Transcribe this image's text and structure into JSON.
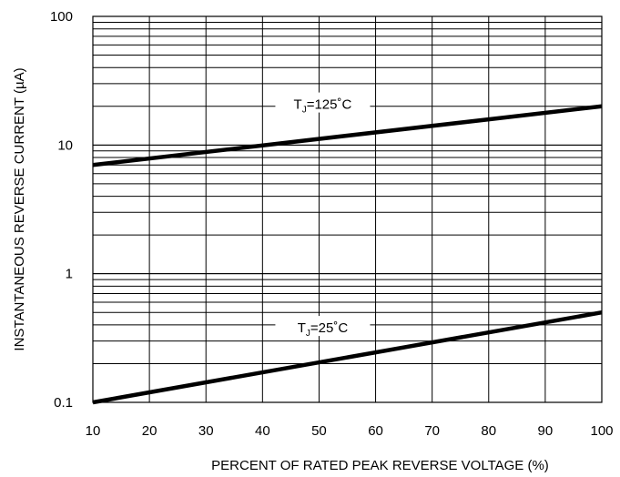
{
  "chart_data": {
    "type": "line",
    "title": "",
    "xlabel": "PERCENT OF RATED PEAK REVERSE VOLTAGE (%)",
    "ylabel": "INSTANTANEOUS REVERSE CURRENT (µA)",
    "x_ticks": [
      "10",
      "20",
      "30",
      "40",
      "50",
      "60",
      "70",
      "80",
      "90",
      "100"
    ],
    "y_ticks": [
      {
        "value": 0.1,
        "label": "0.1"
      },
      {
        "value": 1,
        "label": "1"
      },
      {
        "value": 10,
        "label": "10"
      },
      {
        "value": 100,
        "label": "100"
      }
    ],
    "xlim": [
      10,
      100
    ],
    "ylim": [
      0.1,
      100
    ],
    "y_scale": "log",
    "grid": true,
    "legend": "none",
    "series": [
      {
        "name_main": "T",
        "name_sub": "J",
        "name_rest": "=125˚C",
        "x": [
          10,
          100
        ],
        "y": [
          7,
          20
        ],
        "label_x": 50
      },
      {
        "name_main": "T",
        "name_sub": "J",
        "name_rest": "=25˚C",
        "x": [
          10,
          100
        ],
        "y": [
          0.1,
          0.5
        ],
        "label_x": 50
      }
    ],
    "line_color": "#000000"
  }
}
